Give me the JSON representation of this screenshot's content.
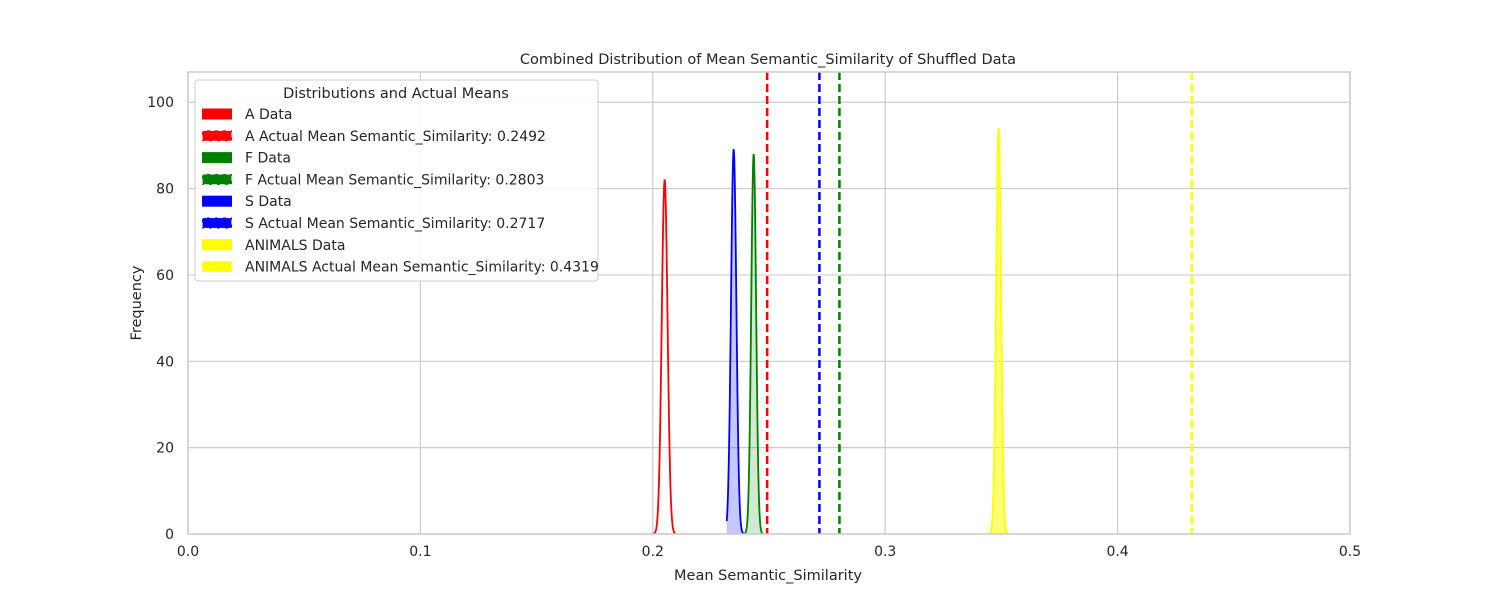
{
  "chart_data": {
    "type": "area",
    "title": "Combined Distribution of Mean Semantic_Similarity of Shuffled Data",
    "xlabel": "Mean Semantic_Similarity",
    "ylabel": "Frequency",
    "xlim": [
      0.0,
      0.5
    ],
    "ylim": [
      0,
      107
    ],
    "xticks": [
      0.0,
      0.1,
      0.2,
      0.3,
      0.4,
      0.5
    ],
    "xtick_labels": [
      "0.0",
      "0.1",
      "0.2",
      "0.3",
      "0.4",
      "0.5"
    ],
    "yticks": [
      0,
      20,
      40,
      60,
      80,
      100
    ],
    "ytick_labels": [
      "0",
      "20",
      "40",
      "60",
      "80",
      "100"
    ],
    "grid": true,
    "legend": {
      "title": "Distributions and Actual Means",
      "position": "upper-left",
      "entries": [
        {
          "label": "A Data",
          "color": "#ff0000",
          "style": "patch"
        },
        {
          "label": "A Actual Mean Semantic_Similarity: 0.2492",
          "color": "#ff0000",
          "style": "dashed"
        },
        {
          "label": "F Data",
          "color": "#008000",
          "style": "patch"
        },
        {
          "label": "F Actual Mean Semantic_Similarity: 0.2803",
          "color": "#008000",
          "style": "dashed"
        },
        {
          "label": "S Data",
          "color": "#0000ff",
          "style": "patch"
        },
        {
          "label": "S Actual Mean Semantic_Similarity: 0.2717",
          "color": "#0000ff",
          "style": "dashed"
        },
        {
          "label": "ANIMALS Data",
          "color": "#ffff00",
          "style": "patch"
        },
        {
          "label": "ANIMALS Actual Mean Semantic_Similarity: 0.4319",
          "color": "#ffff00",
          "style": "dashed"
        }
      ]
    },
    "series": [
      {
        "name": "A Data",
        "color": "#ff0000",
        "fill_opacity": 0.0,
        "center": 0.2051,
        "sd": 0.00125,
        "peak": 82,
        "range": [
          0.2003,
          0.2098
        ]
      },
      {
        "name": "F Data",
        "color": "#008000",
        "fill_opacity": 0.18,
        "center": 0.2434,
        "sd": 0.00105,
        "peak": 88,
        "range": [
          0.2393,
          0.2475
        ]
      },
      {
        "name": "S Data",
        "color": "#0000ff",
        "fill_opacity": 0.22,
        "center": 0.2348,
        "sd": 0.00115,
        "peak": 89,
        "range": [
          0.2318,
          0.2392
        ]
      },
      {
        "name": "ANIMALS Data",
        "color": "#ffff00",
        "fill_opacity": 0.55,
        "center": 0.3488,
        "sd": 0.00105,
        "peak": 94,
        "range": [
          0.3448,
          0.3528
        ]
      }
    ],
    "actual_means": [
      {
        "name": "A",
        "value": 0.2492,
        "color": "#ff0000"
      },
      {
        "name": "F",
        "value": 0.2803,
        "color": "#008000"
      },
      {
        "name": "S",
        "value": 0.2717,
        "color": "#0000ff"
      },
      {
        "name": "ANIMALS",
        "value": 0.4319,
        "color": "#ffff00"
      }
    ]
  }
}
